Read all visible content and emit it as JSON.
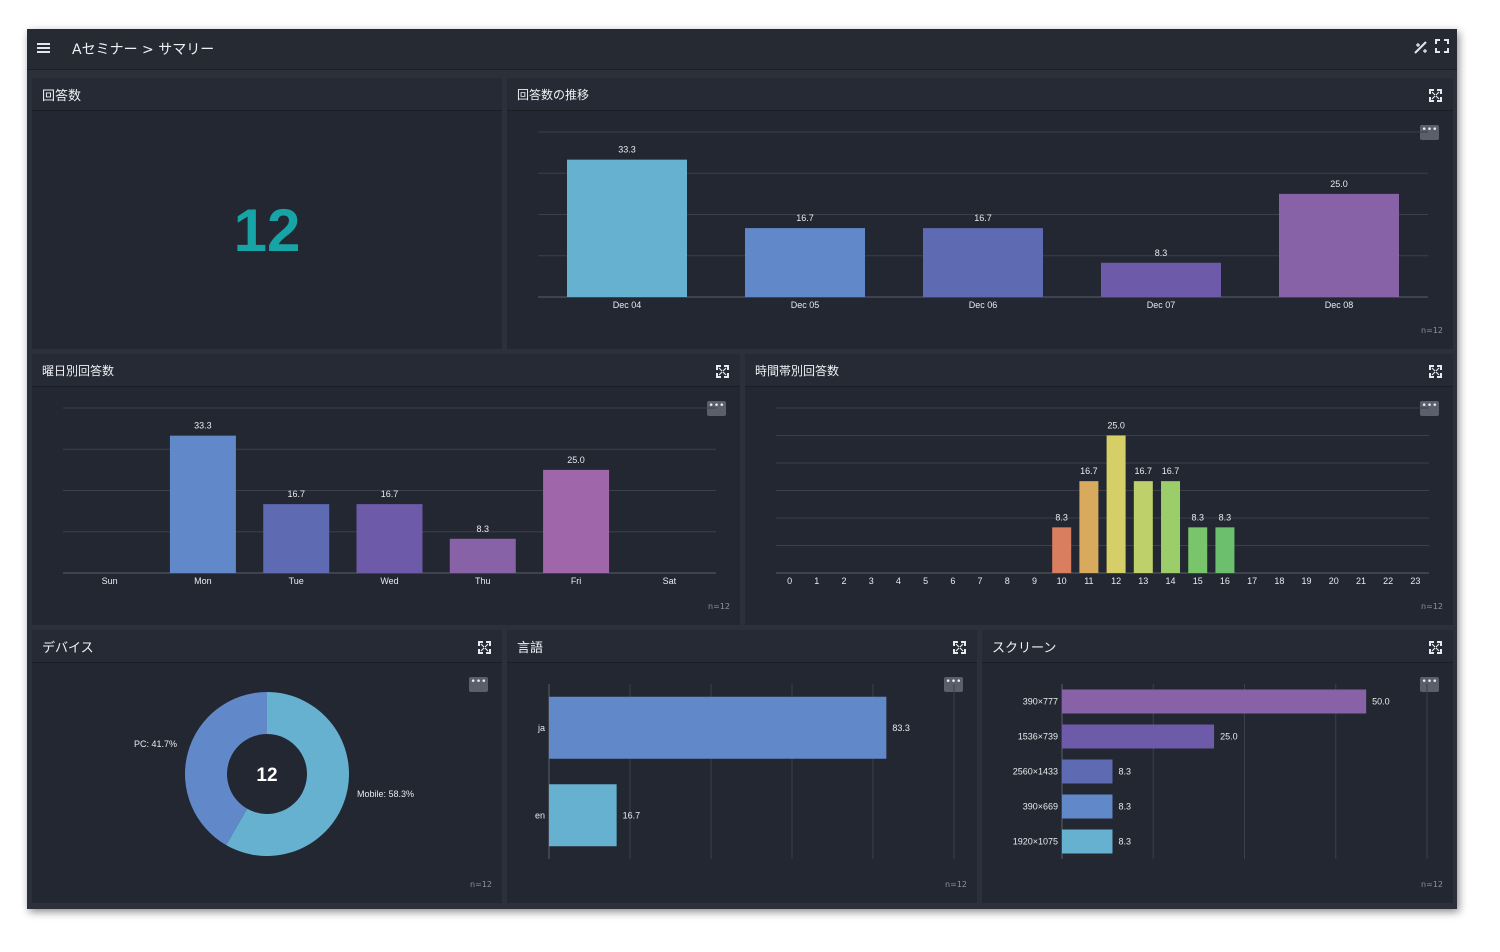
{
  "app": {
    "breadcrumb": "Aセミナー > サマリー"
  },
  "panels": {
    "count": {
      "title": "回答数",
      "value": "12"
    },
    "trend": {
      "title": "回答数の推移",
      "n": "n=12"
    },
    "weekday": {
      "title": "曜日別回答数",
      "n": "n=12"
    },
    "hour": {
      "title": "時間帯別回答数",
      "n": "n=12"
    },
    "device": {
      "title": "デバイス",
      "center": "12",
      "n": "n=12"
    },
    "lang": {
      "title": "言語",
      "n": "n=12"
    },
    "screen": {
      "title": "スクリーン",
      "n": "n=12"
    }
  },
  "icons": {
    "menu": "hamburger-icon",
    "toolbar": [
      "wand-icon",
      "fullscreen-icon"
    ],
    "panel_expand": "expand-icon",
    "panel_more": "more-icon"
  },
  "chart_data": [
    {
      "id": "trend",
      "type": "bar",
      "categories": [
        "Dec 04",
        "Dec 05",
        "Dec 06",
        "Dec 07",
        "Dec 08"
      ],
      "values": [
        33.3,
        16.7,
        16.7,
        8.3,
        25.0
      ],
      "labels": [
        "33.3",
        "16.7",
        "16.7",
        "8.3",
        "25.0"
      ],
      "colors": [
        "#66b0d0",
        "#6188c8",
        "#5e6ab2",
        "#6d5aa8",
        "#8862a6"
      ],
      "ylim": [
        0,
        40
      ]
    },
    {
      "id": "weekday",
      "type": "bar",
      "categories": [
        "Sun",
        "Mon",
        "Tue",
        "Wed",
        "Thu",
        "Fri",
        "Sat"
      ],
      "values": [
        0,
        33.3,
        16.7,
        16.7,
        8.3,
        25.0,
        0
      ],
      "labels": [
        "",
        "33.3",
        "16.7",
        "16.7",
        "8.3",
        "25.0",
        ""
      ],
      "colors": [
        "#6188c8",
        "#6188c8",
        "#5e6ab2",
        "#6d5aa8",
        "#8862a6",
        "#a066aa",
        "#a066aa"
      ],
      "ylim": [
        0,
        40
      ]
    },
    {
      "id": "hour",
      "type": "bar",
      "categories": [
        "0",
        "1",
        "2",
        "3",
        "4",
        "5",
        "6",
        "7",
        "8",
        "9",
        "10",
        "11",
        "12",
        "13",
        "14",
        "15",
        "16",
        "17",
        "18",
        "19",
        "20",
        "21",
        "22",
        "23"
      ],
      "values": [
        0,
        0,
        0,
        0,
        0,
        0,
        0,
        0,
        0,
        0,
        8.3,
        16.7,
        25.0,
        16.7,
        16.7,
        8.3,
        8.3,
        0,
        0,
        0,
        0,
        0,
        0,
        0
      ],
      "labels": [
        "",
        "",
        "",
        "",
        "",
        "",
        "",
        "",
        "",
        "",
        "8.3",
        "16.7",
        "25.0",
        "16.7",
        "16.7",
        "8.3",
        "8.3",
        "",
        "",
        "",
        "",
        "",
        "",
        ""
      ],
      "colors": [
        "#d97f5f",
        "#d97f5f",
        "#d97f5f",
        "#d97f5f",
        "#d97f5f",
        "#d97f5f",
        "#d97f5f",
        "#d97f5f",
        "#d97f5f",
        "#d97f5f",
        "#d97f5f",
        "#d8aa5e",
        "#d6cf68",
        "#bed06a",
        "#9bcd6a",
        "#79c56b",
        "#6cbf6c",
        "#6cbf6c",
        "#6cbf6c",
        "#6cbf6c",
        "#6cbf6c",
        "#6cbf6c",
        "#6cbf6c",
        "#6cbf6c"
      ],
      "ylim": [
        0,
        30
      ]
    },
    {
      "id": "device",
      "type": "pie",
      "categories": [
        "PC",
        "Mobile"
      ],
      "values": [
        41.7,
        58.3
      ],
      "labels": [
        "PC: 41.7%",
        "Mobile: 58.3%"
      ],
      "colors": [
        "#6188c8",
        "#66b0d0"
      ]
    },
    {
      "id": "lang",
      "type": "bar",
      "orientation": "horizontal",
      "categories": [
        "ja",
        "en"
      ],
      "values": [
        83.3,
        16.7
      ],
      "labels": [
        "83.3",
        "16.7"
      ],
      "colors": [
        "#6188c8",
        "#66b0d0"
      ],
      "xlim": [
        0,
        100
      ]
    },
    {
      "id": "screen",
      "type": "bar",
      "orientation": "horizontal",
      "categories": [
        "390×777",
        "1536×739",
        "2560×1433",
        "390×669",
        "1920×1075"
      ],
      "values": [
        50.0,
        25.0,
        8.3,
        8.3,
        8.3
      ],
      "labels": [
        "50.0",
        "25.0",
        "8.3",
        "8.3",
        "8.3"
      ],
      "colors": [
        "#8862a6",
        "#6d5aa8",
        "#5e6ab2",
        "#6188c8",
        "#66b0d0"
      ],
      "xlim": [
        0,
        60
      ]
    }
  ]
}
